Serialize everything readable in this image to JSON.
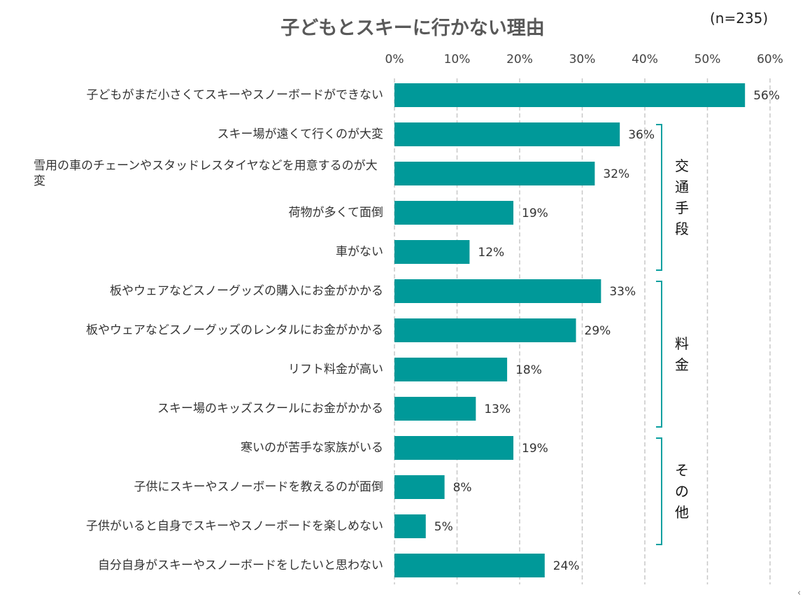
{
  "title": "子どもとスキーに行かない理由",
  "sample_note": "(n=235)",
  "back_icon": "arrow-left-icon",
  "chart_data": {
    "type": "bar",
    "orientation": "horizontal",
    "title": "子どもとスキーに行かない理由",
    "xlim": [
      0,
      60
    ],
    "x_ticks": [
      "0%",
      "10%",
      "20%",
      "30%",
      "40%",
      "50%",
      "60%"
    ],
    "grid": "vertical dashed",
    "bar_color": "#009999",
    "categories": [
      "子どもがまだ小さくてスキーやスノーボードができない",
      "スキー場が遠くて行くのが大変",
      "雪用の車のチェーンやスタッドレスタイヤなどを用意するのが大変",
      "荷物が多くて面倒",
      "車がない",
      "板やウェアなどスノーグッズの購入にお金がかかる",
      "板やウェアなどスノーグッズのレンタルにお金がかかる",
      "リフト料金が高い",
      "スキー場のキッズスクールにお金がかかる",
      "寒いのが苦手な家族がいる",
      "子供にスキーやスノーボードを教えるのが面倒",
      "子供がいると自身でスキーやスノーボードを楽しめない",
      "自分自身がスキーやスノーボードをしたいと思わない"
    ],
    "values": [
      56,
      36,
      32,
      19,
      12,
      33,
      29,
      18,
      13,
      19,
      8,
      5,
      24
    ],
    "data_labels": [
      "56%",
      "36%",
      "32%",
      "19%",
      "12%",
      "33%",
      "29%",
      "18%",
      "13%",
      "19%",
      "8%",
      "5%",
      "24%"
    ],
    "groups": [
      {
        "label": "交通手段",
        "from": 1,
        "to": 4
      },
      {
        "label": "料金",
        "from": 5,
        "to": 8
      },
      {
        "label": "その他",
        "from": 9,
        "to": 11
      }
    ]
  }
}
